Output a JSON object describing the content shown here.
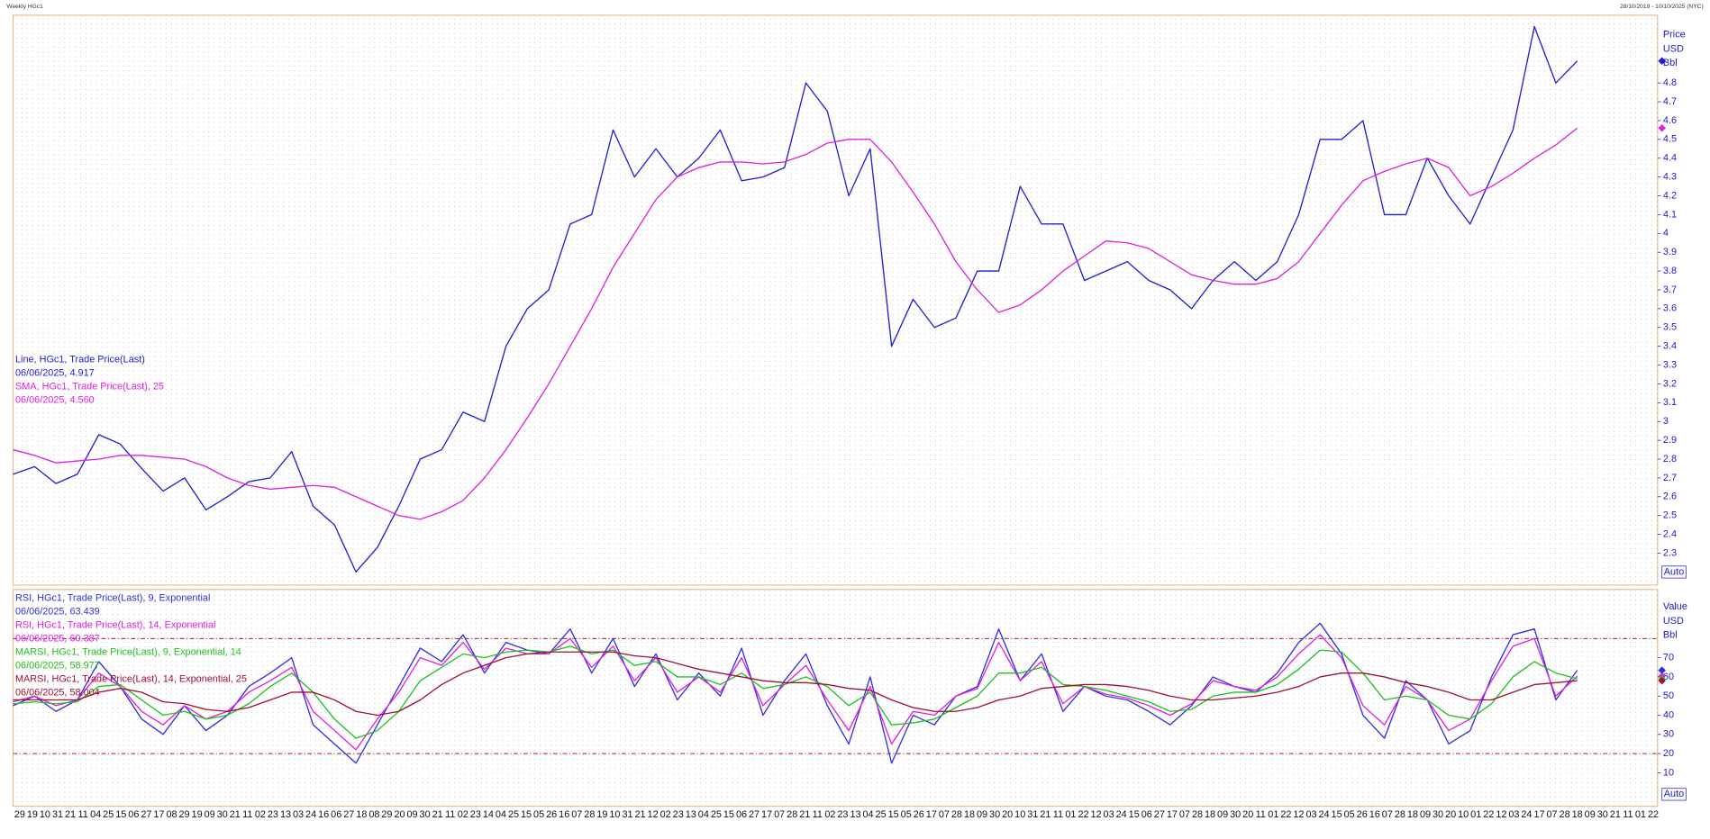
{
  "header": {
    "title": "Weekly HGc1",
    "range": "28/10/2019 - 10/10/2025 (NYC)"
  },
  "chart_data": [
    {
      "type": "line",
      "axis_labels": [
        "Price",
        "USD",
        "Bbl"
      ],
      "auto_button": "Auto",
      "xlim": [
        0,
        307
      ],
      "x": [
        0,
        4,
        8,
        12,
        16,
        20,
        24,
        28,
        32,
        36,
        40,
        44,
        48,
        52,
        56,
        60,
        64,
        68,
        72,
        76,
        80,
        84,
        88,
        92,
        96,
        100,
        104,
        108,
        112,
        116,
        120,
        124,
        128,
        132,
        136,
        140,
        144,
        148,
        152,
        156,
        160,
        164,
        168,
        172,
        176,
        180,
        184,
        188,
        192,
        196,
        200,
        204,
        208,
        212,
        216,
        220,
        224,
        228,
        232,
        236,
        240,
        244,
        248,
        252,
        256,
        260,
        264,
        268,
        272,
        276,
        280,
        284,
        288,
        292
      ],
      "ylim": [
        2.13,
        5.16
      ],
      "yticks": [
        2.3,
        2.4,
        2.5,
        2.6,
        2.7,
        2.8,
        2.9,
        3,
        3.1,
        3.2,
        3.3,
        3.4,
        3.5,
        3.6,
        3.7,
        3.8,
        3.9,
        4,
        4.1,
        4.2,
        4.3,
        4.4,
        4.5,
        4.6,
        4.7,
        4.8
      ],
      "series": [
        {
          "name": "Line, HGc1, Trade Price(Last)",
          "last_label": "06/06/2025, 4.917",
          "color": "#1f1fd0",
          "values": [
            2.72,
            2.76,
            2.67,
            2.72,
            2.93,
            2.88,
            2.75,
            2.63,
            2.7,
            2.53,
            2.6,
            2.68,
            2.7,
            2.84,
            2.55,
            2.45,
            2.2,
            2.33,
            2.55,
            2.8,
            2.85,
            3.05,
            3.0,
            3.4,
            3.6,
            3.7,
            4.05,
            4.1,
            4.55,
            4.3,
            4.45,
            4.3,
            4.4,
            4.55,
            4.28,
            4.3,
            4.35,
            4.8,
            4.65,
            4.2,
            4.45,
            3.4,
            3.65,
            3.5,
            3.55,
            3.8,
            3.8,
            4.25,
            4.05,
            4.05,
            3.75,
            3.8,
            3.85,
            3.75,
            3.7,
            3.6,
            3.75,
            3.85,
            3.75,
            3.85,
            4.1,
            4.5,
            4.5,
            4.6,
            4.1,
            4.1,
            4.4,
            4.2,
            4.05,
            4.3,
            4.55,
            5.1,
            4.8,
            4.917
          ]
        },
        {
          "name": "SMA, HGc1, Trade Price(Last),  25",
          "last_label": "06/06/2025, 4.560",
          "color": "#e020e0",
          "values": [
            2.85,
            2.82,
            2.78,
            2.79,
            2.8,
            2.82,
            2.82,
            2.81,
            2.8,
            2.76,
            2.7,
            2.66,
            2.64,
            2.65,
            2.66,
            2.65,
            2.6,
            2.55,
            2.5,
            2.48,
            2.52,
            2.58,
            2.7,
            2.85,
            3.02,
            3.2,
            3.4,
            3.6,
            3.82,
            4.0,
            4.18,
            4.3,
            4.35,
            4.38,
            4.38,
            4.37,
            4.38,
            4.42,
            4.48,
            4.5,
            4.5,
            4.38,
            4.22,
            4.05,
            3.85,
            3.7,
            3.58,
            3.62,
            3.7,
            3.8,
            3.88,
            3.96,
            3.95,
            3.92,
            3.85,
            3.78,
            3.75,
            3.73,
            3.73,
            3.76,
            3.85,
            4.0,
            4.15,
            4.28,
            4.33,
            4.37,
            4.4,
            4.35,
            4.2,
            4.25,
            4.32,
            4.4,
            4.47,
            4.56
          ]
        }
      ]
    },
    {
      "type": "line",
      "axis_labels": [
        "Value",
        "USD",
        "Bbl"
      ],
      "auto_button": "Auto",
      "xlim": [
        0,
        307
      ],
      "x": [
        0,
        4,
        8,
        12,
        16,
        20,
        24,
        28,
        32,
        36,
        40,
        44,
        48,
        52,
        56,
        60,
        64,
        68,
        72,
        76,
        80,
        84,
        88,
        92,
        96,
        100,
        104,
        108,
        112,
        116,
        120,
        124,
        128,
        132,
        136,
        140,
        144,
        148,
        152,
        156,
        160,
        164,
        168,
        172,
        176,
        180,
        184,
        188,
        192,
        196,
        200,
        204,
        208,
        212,
        216,
        220,
        224,
        228,
        232,
        236,
        240,
        244,
        248,
        252,
        256,
        260,
        264,
        268,
        272,
        276,
        280,
        284,
        288,
        292
      ],
      "ylim": [
        -7.5,
        105.6
      ],
      "yticks": [
        10,
        20,
        30,
        40,
        50,
        60,
        70
      ],
      "hlines": [
        80,
        20
      ],
      "xtick_labels": [
        "29",
        "19",
        "10",
        "31",
        "21",
        "11",
        "04",
        "25",
        "15",
        "06",
        "27",
        "17",
        "08",
        "29",
        "19",
        "09",
        "30",
        "21",
        "11",
        "02",
        "23",
        "13",
        "03",
        "24",
        "16",
        "06",
        "27",
        "18",
        "08",
        "29",
        "20",
        "09",
        "30",
        "21",
        "11",
        "02",
        "23",
        "14",
        "04",
        "25",
        "15",
        "05",
        "26",
        "16",
        "07",
        "28",
        "19",
        "10",
        "31",
        "21",
        "12",
        "02",
        "23",
        "13",
        "04",
        "25",
        "15",
        "06",
        "27",
        "17",
        "07",
        "28",
        "21",
        "11",
        "02",
        "23",
        "13",
        "04",
        "25",
        "15",
        "05",
        "26",
        "17",
        "07",
        "28",
        "18",
        "09",
        "30",
        "20",
        "10",
        "31",
        "21",
        "11",
        "01",
        "22",
        "12",
        "03",
        "24",
        "15",
        "06",
        "27",
        "17",
        "07",
        "28",
        "18",
        "09",
        "30",
        "20",
        "11",
        "01",
        "22",
        "12",
        "03",
        "24",
        "15",
        "05",
        "26",
        "16",
        "07",
        "28",
        "18",
        "09",
        "30",
        "20",
        "10",
        "01",
        "22",
        "12",
        "03",
        "24",
        "17",
        "07",
        "28",
        "18",
        "09",
        "30",
        "21",
        "11",
        "01",
        "22"
      ],
      "series": [
        {
          "name": "RSI, HGc1, Trade Price(Last),  9, Exponential",
          "last_label": "06/06/2025, 63.439",
          "color": "#3030e0",
          "values": [
            45,
            50,
            42,
            48,
            68,
            55,
            38,
            30,
            45,
            32,
            40,
            55,
            62,
            70,
            35,
            25,
            15,
            35,
            55,
            75,
            68,
            82,
            62,
            78,
            74,
            72,
            85,
            62,
            80,
            55,
            72,
            48,
            62,
            50,
            75,
            40,
            58,
            72,
            45,
            25,
            60,
            15,
            40,
            35,
            50,
            55,
            85,
            58,
            72,
            42,
            55,
            50,
            48,
            42,
            35,
            45,
            60,
            55,
            52,
            62,
            78,
            88,
            72,
            40,
            28,
            58,
            48,
            25,
            32,
            60,
            82,
            85,
            48,
            63.439
          ]
        },
        {
          "name": "RSI, HGc1, Trade Price(Last),  14, Exponential",
          "last_label": "06/06/2025, 60.387",
          "color": "#e020e0",
          "values": [
            47,
            50,
            45,
            48,
            62,
            55,
            42,
            35,
            45,
            38,
            42,
            52,
            58,
            65,
            42,
            32,
            22,
            38,
            52,
            70,
            66,
            78,
            64,
            75,
            72,
            72,
            80,
            65,
            76,
            58,
            70,
            52,
            60,
            52,
            70,
            45,
            56,
            66,
            48,
            32,
            55,
            25,
            42,
            40,
            50,
            54,
            78,
            58,
            68,
            46,
            55,
            51,
            49,
            45,
            40,
            46,
            58,
            55,
            53,
            60,
            72,
            82,
            70,
            45,
            35,
            55,
            48,
            32,
            38,
            58,
            76,
            80,
            50,
            60.387
          ]
        },
        {
          "name": "MARSI, HGc1, Trade Price(Last),  9, Exponential, 14",
          "last_label": "06/06/2025, 58.977",
          "color": "#20c020",
          "values": [
            46,
            47,
            46,
            47,
            55,
            56,
            48,
            40,
            42,
            38,
            40,
            46,
            55,
            62,
            52,
            38,
            28,
            32,
            42,
            58,
            65,
            72,
            70,
            73,
            74,
            73,
            76,
            72,
            74,
            66,
            68,
            60,
            60,
            56,
            62,
            54,
            56,
            60,
            55,
            45,
            52,
            35,
            36,
            38,
            44,
            50,
            62,
            62,
            65,
            56,
            55,
            53,
            50,
            47,
            42,
            43,
            50,
            52,
            52,
            56,
            64,
            74,
            73,
            62,
            48,
            50,
            48,
            40,
            38,
            46,
            60,
            68,
            62,
            58.977
          ]
        },
        {
          "name": "MARSI, HGc1, Trade Price(Last),  14, Exponential, 25",
          "last_label": "06/06/2025, 58.004",
          "color": "#a01030",
          "values": [
            48,
            48,
            48,
            48,
            52,
            54,
            52,
            47,
            46,
            43,
            42,
            44,
            48,
            52,
            52,
            48,
            42,
            40,
            42,
            48,
            56,
            62,
            66,
            70,
            72,
            73,
            73,
            73,
            73,
            71,
            70,
            67,
            64,
            62,
            60,
            58,
            57,
            57,
            56,
            54,
            53,
            48,
            44,
            42,
            42,
            44,
            48,
            50,
            54,
            55,
            56,
            56,
            55,
            53,
            50,
            48,
            48,
            49,
            50,
            52,
            55,
            60,
            62,
            62,
            60,
            57,
            55,
            52,
            48,
            48,
            52,
            56,
            57,
            58.004
          ]
        }
      ]
    }
  ]
}
